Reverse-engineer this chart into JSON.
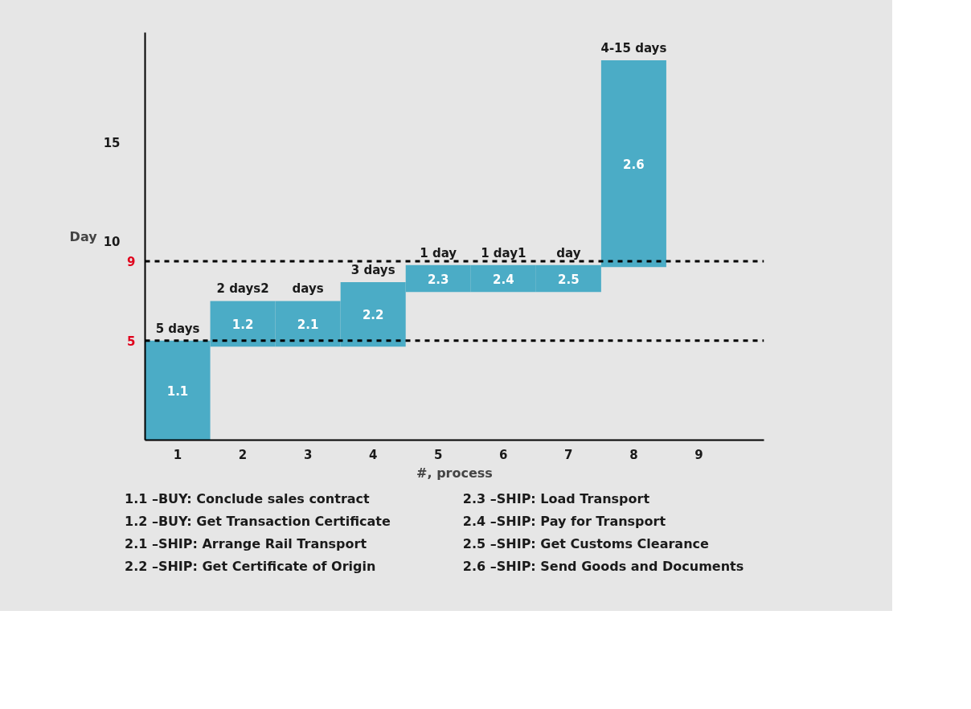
{
  "chart_data": {
    "type": "bar",
    "x": [
      1,
      2,
      3,
      4,
      5,
      6,
      7,
      8
    ],
    "base": [
      0,
      4.7,
      4.7,
      4.7,
      7.45,
      7.45,
      7.45,
      8.7
    ],
    "values": [
      5,
      2.3,
      2.3,
      3.25,
      1.35,
      1.35,
      1.35,
      10.4
    ],
    "value_labels": [
      "5 days",
      "2 days2",
      "days",
      "3 days",
      "1 day",
      "1 day1",
      "day",
      "4-15 days"
    ],
    "color": "#4bacc6",
    "xlim": [
      0.5,
      10
    ],
    "xticks": [
      1,
      2,
      3,
      4,
      5,
      6,
      7,
      8,
      9
    ],
    "ylim": [
      0,
      20.5
    ],
    "yticks": [
      10,
      15
    ],
    "xlabel": "#, process",
    "ylabel": "Day",
    "ref_lines": [
      {
        "axis": "y",
        "value": 5,
        "label": "5",
        "color": "#000000",
        "line_style": "dashed"
      },
      {
        "axis": "y",
        "value": 9,
        "label": "9",
        "color": "#000000",
        "line_style": "dashed"
      }
    ],
    "annotations": [
      "1.1",
      "1.2",
      "2.1",
      "2.2",
      "2.3",
      "2.4",
      "2.5",
      "2.6",
      "1.1 –BUY:  Conclude sales contract",
      "1.2 –BUY: Get Transaction Certificate",
      "2.1 –SHIP: Arrange Rail Transport",
      "2.2 –SHIP: Get Certificate of Origin",
      "2.3 –SHIP: Load Transport",
      "2.4 –SHIP: Pay for Transport",
      "2.5 –SHIP: Get Customs Clearance",
      "2.6 –SHIP: Send Goods and Documents"
    ]
  }
}
